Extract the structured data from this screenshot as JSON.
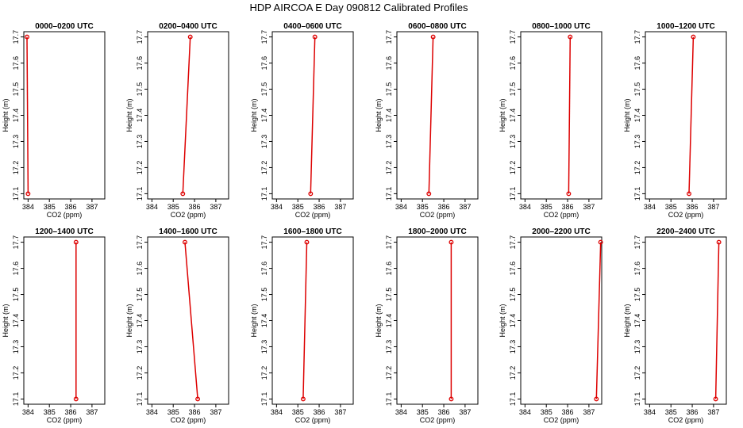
{
  "figure": {
    "title": "HDP AIRCOA E  Day 090812  Calibrated Profiles"
  },
  "style": {
    "line_color": "#dd0000",
    "frame_color": "#000000",
    "background": "#ffffff"
  },
  "chart_data": [
    {
      "type": "line",
      "title": "0000–0200 UTC",
      "xlabel": "CO2 (ppm)",
      "ylabel": "Height (m)",
      "xlim": [
        383.8,
        387.6
      ],
      "ylim": [
        17.08,
        17.72
      ],
      "x_ticks": [
        384,
        385,
        386,
        387
      ],
      "y_ticks": [
        17.1,
        17.2,
        17.3,
        17.4,
        17.5,
        17.6,
        17.7
      ],
      "series": [
        {
          "x": [
            384.0,
            383.95
          ],
          "y": [
            17.1,
            17.7
          ]
        }
      ]
    },
    {
      "type": "line",
      "title": "0200–0400 UTC",
      "xlabel": "CO2 (ppm)",
      "ylabel": "Height (m)",
      "xlim": [
        383.8,
        387.6
      ],
      "ylim": [
        17.08,
        17.72
      ],
      "x_ticks": [
        384,
        385,
        386,
        387
      ],
      "y_ticks": [
        17.1,
        17.2,
        17.3,
        17.4,
        17.5,
        17.6,
        17.7
      ],
      "series": [
        {
          "x": [
            385.45,
            385.8
          ],
          "y": [
            17.1,
            17.7
          ]
        }
      ]
    },
    {
      "type": "line",
      "title": "0400–0600 UTC",
      "xlabel": "CO2 (ppm)",
      "ylabel": "Height (m)",
      "xlim": [
        383.8,
        387.6
      ],
      "ylim": [
        17.08,
        17.72
      ],
      "x_ticks": [
        384,
        385,
        386,
        387
      ],
      "y_ticks": [
        17.1,
        17.2,
        17.3,
        17.4,
        17.5,
        17.6,
        17.7
      ],
      "series": [
        {
          "x": [
            385.6,
            385.8
          ],
          "y": [
            17.1,
            17.7
          ]
        }
      ]
    },
    {
      "type": "line",
      "title": "0600–0800 UTC",
      "xlabel": "CO2 (ppm)",
      "ylabel": "Height (m)",
      "xlim": [
        383.8,
        387.6
      ],
      "ylim": [
        17.08,
        17.72
      ],
      "x_ticks": [
        384,
        385,
        386,
        387
      ],
      "y_ticks": [
        17.1,
        17.2,
        17.3,
        17.4,
        17.5,
        17.6,
        17.7
      ],
      "series": [
        {
          "x": [
            385.3,
            385.5
          ],
          "y": [
            17.1,
            17.7
          ]
        }
      ]
    },
    {
      "type": "line",
      "title": "0800–1000 UTC",
      "xlabel": "CO2 (ppm)",
      "ylabel": "Height (m)",
      "xlim": [
        383.8,
        387.6
      ],
      "ylim": [
        17.08,
        17.72
      ],
      "x_ticks": [
        384,
        385,
        386,
        387
      ],
      "y_ticks": [
        17.1,
        17.2,
        17.3,
        17.4,
        17.5,
        17.6,
        17.7
      ],
      "series": [
        {
          "x": [
            386.05,
            386.12
          ],
          "y": [
            17.1,
            17.7
          ]
        }
      ]
    },
    {
      "type": "line",
      "title": "1000–1200 UTC",
      "xlabel": "CO2 (ppm)",
      "ylabel": "Height (m)",
      "xlim": [
        383.8,
        387.6
      ],
      "ylim": [
        17.08,
        17.72
      ],
      "x_ticks": [
        384,
        385,
        386,
        387
      ],
      "y_ticks": [
        17.1,
        17.2,
        17.3,
        17.4,
        17.5,
        17.6,
        17.7
      ],
      "series": [
        {
          "x": [
            385.85,
            386.05
          ],
          "y": [
            17.1,
            17.7
          ]
        }
      ]
    },
    {
      "type": "line",
      "title": "1200–1400 UTC",
      "xlabel": "CO2 (ppm)",
      "ylabel": "Height (m)",
      "xlim": [
        383.8,
        387.6
      ],
      "ylim": [
        17.08,
        17.72
      ],
      "x_ticks": [
        384,
        385,
        386,
        387
      ],
      "y_ticks": [
        17.1,
        17.2,
        17.3,
        17.4,
        17.5,
        17.6,
        17.7
      ],
      "series": [
        {
          "x": [
            386.25,
            386.25
          ],
          "y": [
            17.1,
            17.7
          ]
        }
      ]
    },
    {
      "type": "line",
      "title": "1400–1600 UTC",
      "xlabel": "CO2 (ppm)",
      "ylabel": "Height (m)",
      "xlim": [
        383.8,
        387.6
      ],
      "ylim": [
        17.08,
        17.72
      ],
      "x_ticks": [
        384,
        385,
        386,
        387
      ],
      "y_ticks": [
        17.1,
        17.2,
        17.3,
        17.4,
        17.5,
        17.6,
        17.7
      ],
      "series": [
        {
          "x": [
            386.15,
            385.55
          ],
          "y": [
            17.1,
            17.7
          ]
        }
      ]
    },
    {
      "type": "line",
      "title": "1600–1800 UTC",
      "xlabel": "CO2 (ppm)",
      "ylabel": "Height (m)",
      "xlim": [
        383.8,
        387.6
      ],
      "ylim": [
        17.08,
        17.72
      ],
      "x_ticks": [
        384,
        385,
        386,
        387
      ],
      "y_ticks": [
        17.1,
        17.2,
        17.3,
        17.4,
        17.5,
        17.6,
        17.7
      ],
      "series": [
        {
          "x": [
            385.25,
            385.42
          ],
          "y": [
            17.1,
            17.7
          ]
        }
      ]
    },
    {
      "type": "line",
      "title": "1800–2000 UTC",
      "xlabel": "CO2 (ppm)",
      "ylabel": "Height (m)",
      "xlim": [
        383.8,
        387.6
      ],
      "ylim": [
        17.08,
        17.72
      ],
      "x_ticks": [
        384,
        385,
        386,
        387
      ],
      "y_ticks": [
        17.1,
        17.2,
        17.3,
        17.4,
        17.5,
        17.6,
        17.7
      ],
      "series": [
        {
          "x": [
            386.35,
            386.35
          ],
          "y": [
            17.1,
            17.7
          ]
        }
      ]
    },
    {
      "type": "line",
      "title": "2000–2200 UTC",
      "xlabel": "CO2 (ppm)",
      "ylabel": "Height (m)",
      "xlim": [
        383.8,
        387.6
      ],
      "ylim": [
        17.08,
        17.72
      ],
      "x_ticks": [
        384,
        385,
        386,
        387
      ],
      "y_ticks": [
        17.1,
        17.2,
        17.3,
        17.4,
        17.5,
        17.6,
        17.7
      ],
      "series": [
        {
          "x": [
            387.35,
            387.55
          ],
          "y": [
            17.1,
            17.7
          ]
        }
      ]
    },
    {
      "type": "line",
      "title": "2200–2400 UTC",
      "xlabel": "CO2 (ppm)",
      "ylabel": "Height (m)",
      "xlim": [
        383.8,
        387.6
      ],
      "ylim": [
        17.08,
        17.72
      ],
      "x_ticks": [
        384,
        385,
        386,
        387
      ],
      "y_ticks": [
        17.1,
        17.2,
        17.3,
        17.4,
        17.5,
        17.6,
        17.7
      ],
      "series": [
        {
          "x": [
            387.1,
            387.25
          ],
          "y": [
            17.1,
            17.7
          ]
        }
      ]
    }
  ]
}
